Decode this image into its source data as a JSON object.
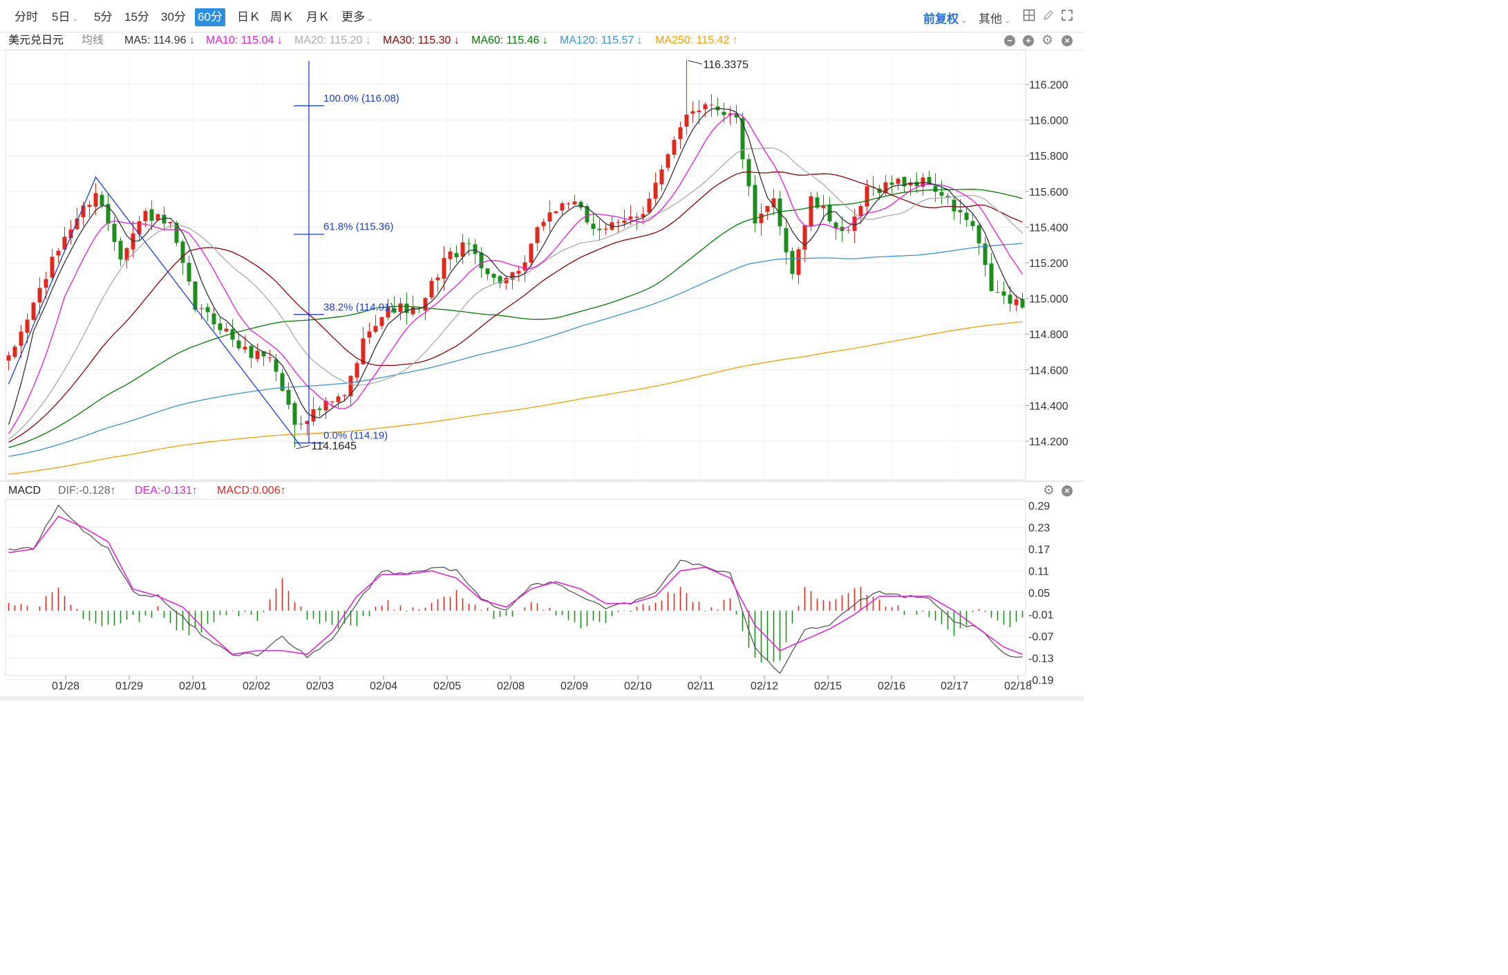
{
  "toolbar": {
    "tabs": [
      {
        "label": "分时",
        "dropdown": false,
        "active": false
      },
      {
        "label": "5日",
        "dropdown": true,
        "active": false
      },
      {
        "label": "5分",
        "dropdown": false,
        "active": false
      },
      {
        "label": "15分",
        "dropdown": false,
        "active": false
      },
      {
        "label": "30分",
        "dropdown": false,
        "active": false
      },
      {
        "label": "60分",
        "dropdown": false,
        "active": true
      },
      {
        "label": "日Ｋ",
        "dropdown": false,
        "active": false
      },
      {
        "label": "周Ｋ",
        "dropdown": false,
        "active": false
      },
      {
        "label": "月Ｋ",
        "dropdown": false,
        "active": false
      },
      {
        "label": "更多",
        "dropdown": true,
        "active": false
      }
    ],
    "adjust_label": "前复权",
    "other_label": "其他",
    "icons": [
      "grid-icon",
      "pen-icon",
      "fullscreen-icon"
    ]
  },
  "legend": {
    "symbol": "美元兑日元",
    "ma_type": "均线",
    "items": [
      {
        "text": "MA5: 114.96 ↓",
        "color": "#333333"
      },
      {
        "text": "MA10: 115.04 ↓",
        "color": "#e51cd6"
      },
      {
        "text": "MA20: 115.20 ↓",
        "color": "#aaaaaa"
      },
      {
        "text": "MA30: 115.30 ↓",
        "color": "#8b0000"
      },
      {
        "text": "MA60: 115.46 ↓",
        "color": "#007a00"
      },
      {
        "text": "MA120: 115.57 ↓",
        "color": "#3c8fdc"
      },
      {
        "text": "MA250: 115.42 ↑",
        "color": "#f5a000"
      }
    ]
  },
  "macd_legend": {
    "name": "MACD",
    "dif": "DIF:-0.128↑",
    "dea": "DEA:-0.131↑",
    "macd": "MACD:0.006↑"
  },
  "colors": {
    "up": "#e0281e",
    "down": "#1e8c1e",
    "fib": "#1a3fd6",
    "dif": "#555555",
    "dea": "#e51cd6",
    "grid": "#ececec"
  },
  "chart_data": [
    {
      "type": "candlestick",
      "ylim": [
        114.0,
        116.35
      ],
      "y_ticks": [
        "116.200",
        "116.000",
        "115.800",
        "115.600",
        "115.400",
        "115.200",
        "115.000",
        "114.800",
        "114.600",
        "114.400",
        "114.200"
      ],
      "x_ticks": [
        "01/28",
        "01/29",
        "02/01",
        "02/02",
        "02/03",
        "02/04",
        "02/05",
        "02/08",
        "02/09",
        "02/10",
        "02/11",
        "02/12",
        "02/15",
        "02/16",
        "02/17",
        "02/18"
      ],
      "high_annotation": "116.3375",
      "low_annotation": "114.1645",
      "fibonacci": [
        {
          "label": "100.0% (116.08)",
          "price": 116.08
        },
        {
          "label": "61.8% (115.36)",
          "price": 115.36
        },
        {
          "label": "38.2% (114.91)",
          "price": 114.91
        },
        {
          "label": "0.0% (114.19)",
          "price": 114.19
        }
      ],
      "trendline": [
        [
          0,
          114.52
        ],
        [
          14,
          115.68
        ],
        [
          47,
          114.17
        ]
      ],
      "anchors": [
        [
          0,
          114.65
        ],
        [
          5,
          115.05
        ],
        [
          9,
          115.35
        ],
        [
          14,
          115.6
        ],
        [
          18,
          115.25
        ],
        [
          22,
          115.48
        ],
        [
          26,
          115.4
        ],
        [
          30,
          114.95
        ],
        [
          34,
          114.85
        ],
        [
          38,
          114.7
        ],
        [
          42,
          114.68
        ],
        [
          46,
          114.3
        ],
        [
          50,
          114.38
        ],
        [
          54,
          114.45
        ],
        [
          58,
          114.85
        ],
        [
          62,
          114.95
        ],
        [
          66,
          114.92
        ],
        [
          70,
          115.22
        ],
        [
          74,
          115.3
        ],
        [
          78,
          115.1
        ],
        [
          82,
          115.12
        ],
        [
          86,
          115.45
        ],
        [
          90,
          115.55
        ],
        [
          94,
          115.4
        ],
        [
          98,
          115.4
        ],
        [
          102,
          115.5
        ],
        [
          106,
          115.78
        ],
        [
          109,
          116.05
        ],
        [
          113,
          116.1
        ],
        [
          117,
          116.0
        ],
        [
          120,
          115.4
        ],
        [
          123,
          115.55
        ],
        [
          126,
          115.15
        ],
        [
          129,
          115.55
        ],
        [
          132,
          115.45
        ],
        [
          135,
          115.35
        ],
        [
          138,
          115.6
        ],
        [
          142,
          115.65
        ],
        [
          145,
          115.65
        ],
        [
          148,
          115.65
        ],
        [
          152,
          115.5
        ],
        [
          155,
          115.4
        ],
        [
          158,
          115.05
        ],
        [
          161,
          114.98
        ],
        [
          163,
          114.95
        ]
      ],
      "candle_count": 164,
      "ma_series": [
        {
          "name": "MA5",
          "period": 5,
          "color": "#333333"
        },
        {
          "name": "MA10",
          "period": 10,
          "color": "#e51cd6"
        },
        {
          "name": "MA20",
          "period": 20,
          "color": "#aaaaaa"
        },
        {
          "name": "MA30",
          "period": 30,
          "color": "#8b0000"
        },
        {
          "name": "MA60",
          "period": 60,
          "color": "#007a00"
        },
        {
          "name": "MA120",
          "period": 120,
          "color": "#3c8fdc"
        },
        {
          "name": "MA250",
          "period": 250,
          "color": "#f5a000"
        }
      ]
    },
    {
      "type": "macd",
      "ylim": [
        -0.21,
        0.31
      ],
      "y_ticks": [
        "0.29",
        "0.23",
        "0.17",
        "0.11",
        "0.05",
        "-0.01",
        "-0.07",
        "-0.13",
        "-0.19"
      ],
      "dif_anchors": [
        [
          0,
          0.17
        ],
        [
          4,
          0.17
        ],
        [
          8,
          0.29
        ],
        [
          12,
          0.22
        ],
        [
          16,
          0.17
        ],
        [
          20,
          0.05
        ],
        [
          24,
          0.04
        ],
        [
          28,
          -0.02
        ],
        [
          32,
          -0.08
        ],
        [
          36,
          -0.12
        ],
        [
          40,
          -0.12
        ],
        [
          44,
          -0.07
        ],
        [
          48,
          -0.13
        ],
        [
          52,
          -0.08
        ],
        [
          56,
          0.02
        ],
        [
          60,
          0.11
        ],
        [
          64,
          0.1
        ],
        [
          68,
          0.12
        ],
        [
          72,
          0.11
        ],
        [
          76,
          0.03
        ],
        [
          80,
          0.0
        ],
        [
          84,
          0.07
        ],
        [
          88,
          0.08
        ],
        [
          92,
          0.04
        ],
        [
          96,
          0.01
        ],
        [
          100,
          0.02
        ],
        [
          104,
          0.05
        ],
        [
          108,
          0.14
        ],
        [
          112,
          0.12
        ],
        [
          116,
          0.1
        ],
        [
          120,
          -0.1
        ],
        [
          124,
          -0.17
        ],
        [
          128,
          -0.05
        ],
        [
          132,
          -0.04
        ],
        [
          136,
          0.02
        ],
        [
          140,
          0.05
        ],
        [
          144,
          0.04
        ],
        [
          148,
          0.03
        ],
        [
          152,
          -0.03
        ],
        [
          156,
          -0.05
        ],
        [
          160,
          -0.12
        ],
        [
          163,
          -0.13
        ]
      ],
      "dea_anchors": [
        [
          0,
          0.16
        ],
        [
          4,
          0.17
        ],
        [
          8,
          0.26
        ],
        [
          12,
          0.23
        ],
        [
          16,
          0.19
        ],
        [
          20,
          0.06
        ],
        [
          24,
          0.04
        ],
        [
          28,
          0.01
        ],
        [
          32,
          -0.06
        ],
        [
          36,
          -0.12
        ],
        [
          40,
          -0.11
        ],
        [
          44,
          -0.11
        ],
        [
          48,
          -0.12
        ],
        [
          52,
          -0.06
        ],
        [
          56,
          0.04
        ],
        [
          60,
          0.1
        ],
        [
          64,
          0.1
        ],
        [
          68,
          0.11
        ],
        [
          72,
          0.09
        ],
        [
          76,
          0.03
        ],
        [
          80,
          0.01
        ],
        [
          84,
          0.06
        ],
        [
          88,
          0.08
        ],
        [
          92,
          0.06
        ],
        [
          96,
          0.02
        ],
        [
          100,
          0.02
        ],
        [
          104,
          0.04
        ],
        [
          108,
          0.11
        ],
        [
          112,
          0.12
        ],
        [
          116,
          0.09
        ],
        [
          120,
          -0.04
        ],
        [
          124,
          -0.11
        ],
        [
          128,
          -0.08
        ],
        [
          132,
          -0.05
        ],
        [
          136,
          -0.01
        ],
        [
          140,
          0.04
        ],
        [
          144,
          0.04
        ],
        [
          148,
          0.04
        ],
        [
          152,
          0.0
        ],
        [
          156,
          -0.05
        ],
        [
          160,
          -0.1
        ],
        [
          163,
          -0.12
        ]
      ]
    }
  ]
}
